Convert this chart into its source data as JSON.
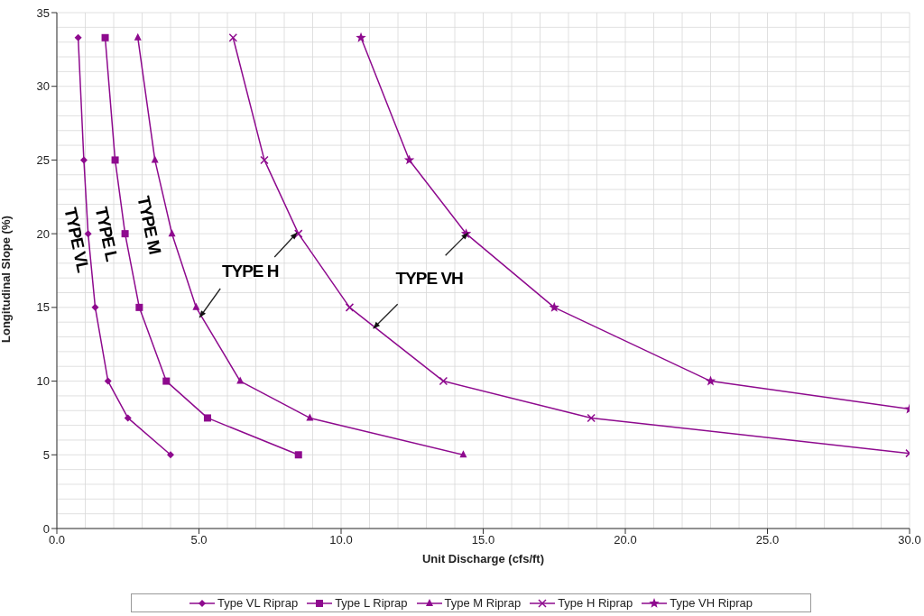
{
  "chart_data": {
    "type": "line",
    "xlabel": "Unit Discharge (cfs/ft)",
    "ylabel": "Longitudinal Slope (%)",
    "xlim": [
      0,
      30
    ],
    "ylim": [
      0,
      35
    ],
    "xticks": [
      {
        "value": 0,
        "label": "0.0"
      },
      {
        "value": 5,
        "label": "5.0"
      },
      {
        "value": 10,
        "label": "10.0"
      },
      {
        "value": 15,
        "label": "15.0"
      },
      {
        "value": 20,
        "label": "20.0"
      },
      {
        "value": 25,
        "label": "25.0"
      },
      {
        "value": 30,
        "label": "30.0"
      }
    ],
    "yticks": [
      0,
      5,
      10,
      15,
      20,
      25,
      30,
      35
    ],
    "grid": true,
    "legend": "bottom",
    "series": [
      {
        "name": "Type VL Riprap",
        "color": "#8e0a8e",
        "marker": "diamond",
        "x": [
          0.75,
          0.95,
          1.1,
          1.35,
          1.8,
          2.5,
          4.0
        ],
        "values": [
          33.3,
          25,
          20,
          15,
          10,
          7.5,
          5
        ]
      },
      {
        "name": "Type L Riprap",
        "color": "#8e0a8e",
        "marker": "square",
        "x": [
          1.7,
          2.05,
          2.4,
          2.9,
          3.85,
          5.3,
          8.5
        ],
        "values": [
          33.3,
          25,
          20,
          15,
          10,
          7.5,
          5
        ]
      },
      {
        "name": "Type M Riprap",
        "color": "#8e0a8e",
        "marker": "triangle",
        "x": [
          2.85,
          3.45,
          4.05,
          4.9,
          6.45,
          8.9,
          14.3
        ],
        "values": [
          33.3,
          25,
          20,
          15,
          10,
          7.5,
          5
        ]
      },
      {
        "name": "Type H Riprap",
        "color": "#8e0a8e",
        "marker": "cross",
        "x": [
          6.2,
          7.3,
          8.5,
          10.3,
          13.6,
          18.8,
          30
        ],
        "values": [
          33.3,
          25,
          20,
          15,
          10,
          7.5,
          5.1
        ]
      },
      {
        "name": "Type VH Riprap",
        "color": "#8e0a8e",
        "marker": "star",
        "x": [
          10.7,
          12.4,
          14.4,
          17.5,
          23.0,
          30
        ],
        "values": [
          33.3,
          25,
          20,
          15,
          10,
          8.1
        ]
      }
    ],
    "annotations": [
      "TYPE VL",
      "TYPE L",
      "TYPE M",
      "TYPE H",
      "TYPE VH"
    ]
  }
}
